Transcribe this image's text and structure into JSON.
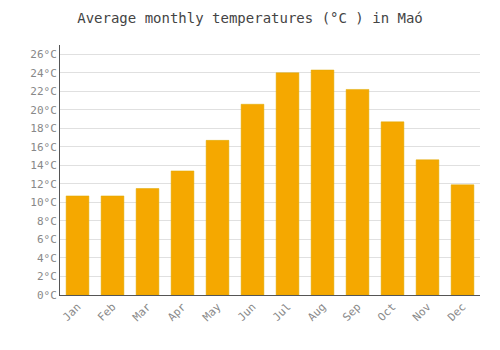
{
  "chart_data": {
    "type": "bar",
    "title": "Average monthly temperatures (°C ) in Maó",
    "categories": [
      "Jan",
      "Feb",
      "Mar",
      "Apr",
      "May",
      "Jun",
      "Jul",
      "Aug",
      "Sep",
      "Oct",
      "Nov",
      "Dec"
    ],
    "values": [
      10.7,
      10.7,
      11.5,
      13.4,
      16.7,
      20.6,
      24.0,
      24.3,
      22.2,
      18.7,
      14.6,
      11.9
    ],
    "color": "#F5A800",
    "ylim": [
      0,
      27
    ],
    "yticks": [
      {
        "value": 0,
        "label": "0°C"
      },
      {
        "value": 2,
        "label": "2°C"
      },
      {
        "value": 4,
        "label": "4°C"
      },
      {
        "value": 6,
        "label": "6°C"
      },
      {
        "value": 8,
        "label": "8°C"
      },
      {
        "value": 10,
        "label": "10°C"
      },
      {
        "value": 12,
        "label": "12°C"
      },
      {
        "value": 14,
        "label": "14°C"
      },
      {
        "value": 16,
        "label": "16°C"
      },
      {
        "value": 18,
        "label": "18°C"
      },
      {
        "value": 20,
        "label": "20°C"
      },
      {
        "value": 22,
        "label": "22°C"
      },
      {
        "value": 24,
        "label": "24°C"
      },
      {
        "value": 26,
        "label": "26°C"
      }
    ],
    "grid": true
  }
}
